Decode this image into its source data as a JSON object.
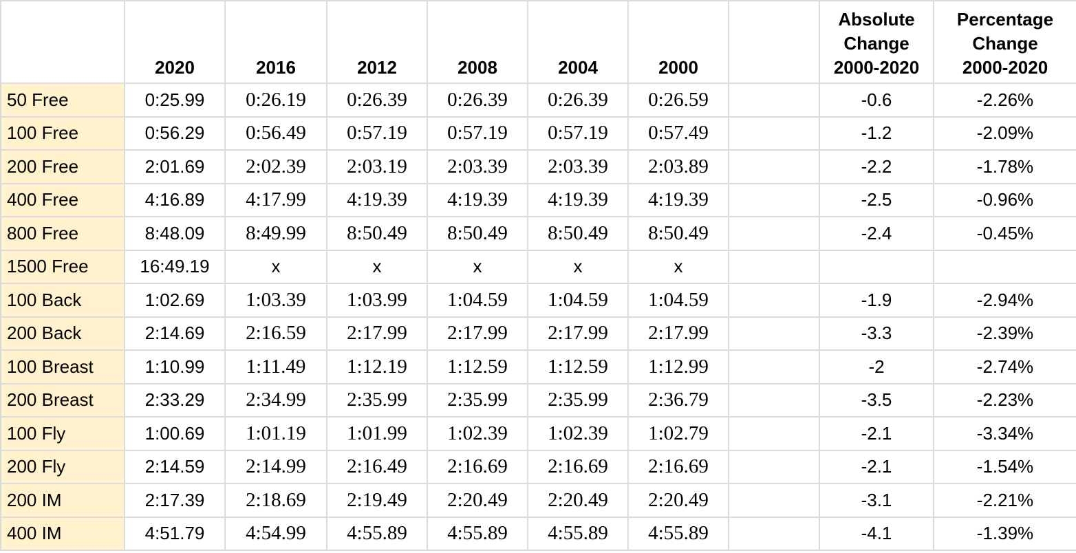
{
  "table": {
    "columns": [
      "2020",
      "2016",
      "2012",
      "2008",
      "2004",
      "2000"
    ],
    "change_columns": [
      "Absolute\nChange\n2000-2020",
      "Percentage\nChange\n2000-2020"
    ],
    "rows": [
      {
        "label": "50 Free",
        "times": [
          "0:25.99",
          "0:26.19",
          "0:26.39",
          "0:26.39",
          "0:26.39",
          "0:26.59"
        ],
        "absolute": "-0.6",
        "percentage": "-2.26%"
      },
      {
        "label": "100 Free",
        "times": [
          "0:56.29",
          "0:56.49",
          "0:57.19",
          "0:57.19",
          "0:57.19",
          "0:57.49"
        ],
        "absolute": "-1.2",
        "percentage": "-2.09%"
      },
      {
        "label": "200 Free",
        "times": [
          "2:01.69",
          "2:02.39",
          "2:03.19",
          "2:03.39",
          "2:03.39",
          "2:03.89"
        ],
        "absolute": "-2.2",
        "percentage": "-1.78%"
      },
      {
        "label": "400 Free",
        "times": [
          "4:16.89",
          "4:17.99",
          "4:19.39",
          "4:19.39",
          "4:19.39",
          "4:19.39"
        ],
        "absolute": "-2.5",
        "percentage": "-0.96%"
      },
      {
        "label": "800 Free",
        "times": [
          "8:48.09",
          "8:49.99",
          "8:50.49",
          "8:50.49",
          "8:50.49",
          "8:50.49"
        ],
        "absolute": "-2.4",
        "percentage": "-0.45%"
      },
      {
        "label": "1500 Free",
        "times": [
          "16:49.19",
          "x",
          "x",
          "x",
          "x",
          "x"
        ],
        "absolute": null,
        "percentage": null
      },
      {
        "label": "100 Back",
        "times": [
          "1:02.69",
          "1:03.39",
          "1:03.99",
          "1:04.59",
          "1:04.59",
          "1:04.59"
        ],
        "absolute": "-1.9",
        "percentage": "-2.94%"
      },
      {
        "label": "200 Back",
        "times": [
          "2:14.69",
          "2:16.59",
          "2:17.99",
          "2:17.99",
          "2:17.99",
          "2:17.99"
        ],
        "absolute": "-3.3",
        "percentage": "-2.39%"
      },
      {
        "label": "100 Breast",
        "times": [
          "1:10.99",
          "1:11.49",
          "1:12.19",
          "1:12.59",
          "1:12.59",
          "1:12.99"
        ],
        "absolute": "-2",
        "percentage": "-2.74%"
      },
      {
        "label": "200 Breast",
        "times": [
          "2:33.29",
          "2:34.99",
          "2:35.99",
          "2:35.99",
          "2:35.99",
          "2:36.79"
        ],
        "absolute": "-3.5",
        "percentage": "-2.23%"
      },
      {
        "label": "100 Fly",
        "times": [
          "1:00.69",
          "1:01.19",
          "1:01.99",
          "1:02.39",
          "1:02.39",
          "1:02.79"
        ],
        "absolute": "-2.1",
        "percentage": "-3.34%"
      },
      {
        "label": "200 Fly",
        "times": [
          "2:14.59",
          "2:14.99",
          "2:16.49",
          "2:16.69",
          "2:16.69",
          "2:16.69"
        ],
        "absolute": "-2.1",
        "percentage": "-1.54%"
      },
      {
        "label": "200 IM",
        "times": [
          "2:17.39",
          "2:18.69",
          "2:19.49",
          "2:20.49",
          "2:20.49",
          "2:20.49"
        ],
        "absolute": "-3.1",
        "percentage": "-2.21%"
      },
      {
        "label": "400 IM",
        "times": [
          "4:51.79",
          "4:54.99",
          "4:55.89",
          "4:55.89",
          "4:55.89",
          "4:55.89"
        ],
        "absolute": "-4.1",
        "percentage": "-1.39%"
      }
    ]
  }
}
